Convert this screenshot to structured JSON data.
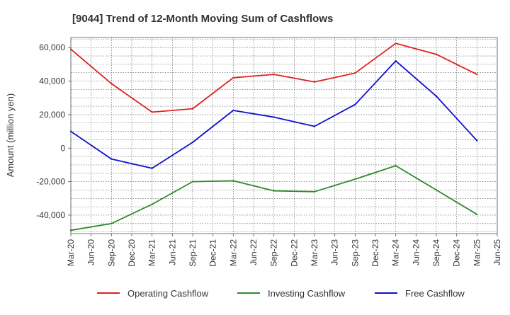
{
  "chart_data": {
    "type": "line",
    "title": "[9044]  Trend of 12-Month Moving Sum of Cashflows",
    "ylabel": "Amount (million yen)",
    "xlabel": "",
    "x": [
      "Mar-20",
      "Jun-20",
      "Sep-20",
      "Dec-20",
      "Mar-21",
      "Jun-21",
      "Sep-21",
      "Dec-21",
      "Mar-22",
      "Jun-22",
      "Sep-22",
      "Dec-22",
      "Mar-23",
      "Jun-23",
      "Sep-23",
      "Dec-23",
      "Mar-24",
      "Jun-24",
      "Sep-24",
      "Dec-24",
      "Mar-25",
      "Jun-25"
    ],
    "y_ticks": [
      60000,
      40000,
      20000,
      0,
      -20000,
      -40000
    ],
    "y_tick_labels": [
      "60,000",
      "40,000",
      "20,000",
      "0",
      "-20,000",
      "-40,000"
    ],
    "ylim": [
      -51000,
      66000
    ],
    "grid": true,
    "legend_position": "bottom",
    "series": [
      {
        "name": "Operating Cashflow",
        "color": "#e02020",
        "values": [
          59000,
          null,
          38500,
          null,
          21500,
          null,
          23500,
          null,
          42000,
          null,
          44000,
          null,
          39500,
          null,
          44800,
          null,
          62500,
          null,
          56000,
          null,
          44000,
          null
        ]
      },
      {
        "name": "Investing Cashflow",
        "color": "#2e8b2e",
        "values": [
          -49000,
          null,
          -45000,
          null,
          -33500,
          null,
          -20000,
          null,
          -19500,
          null,
          -25500,
          null,
          -26000,
          null,
          -18500,
          null,
          -10500,
          null,
          -25000,
          null,
          -39500,
          null
        ]
      },
      {
        "name": "Free Cashflow",
        "color": "#1010d0",
        "values": [
          10000,
          null,
          -6500,
          null,
          -12000,
          null,
          3500,
          null,
          22500,
          null,
          18500,
          null,
          13000,
          null,
          26000,
          null,
          52000,
          null,
          31000,
          null,
          4500,
          null
        ]
      }
    ]
  }
}
